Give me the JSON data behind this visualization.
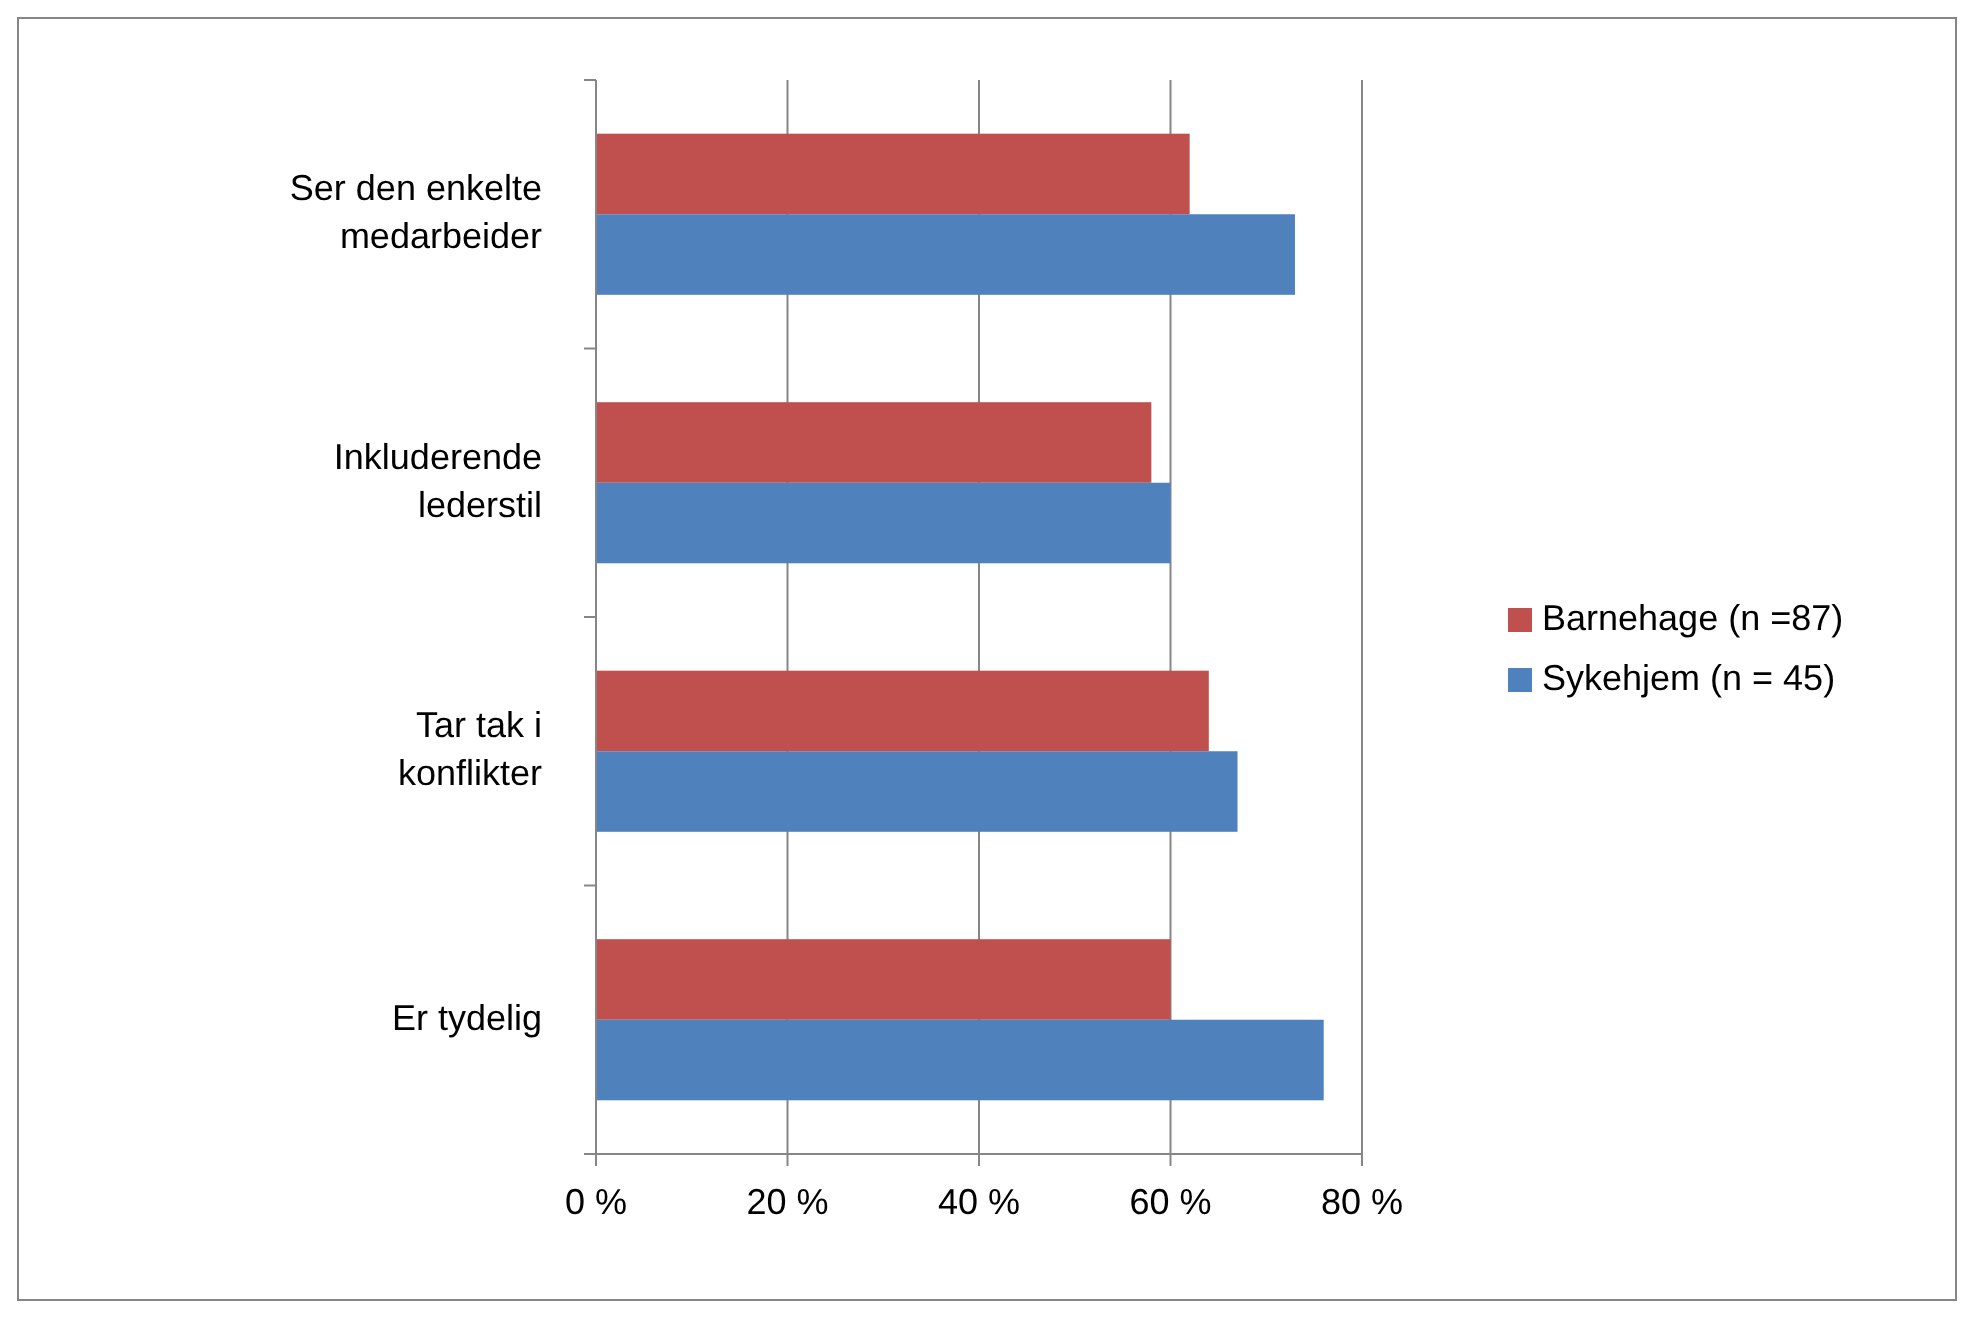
{
  "chart_data": {
    "type": "bar",
    "orientation": "horizontal",
    "categories": [
      "Ser den enkelte medarbeider",
      "Inkluderende lederstil",
      "Tar tak i konflikter",
      "Er tydelig"
    ],
    "series": [
      {
        "name": "Barnehage (n =87)",
        "color": "#c0504d",
        "values": [
          62,
          58,
          64,
          60
        ]
      },
      {
        "name": "Sykehjem (n = 45)",
        "color": "#4f81bd",
        "values": [
          73,
          60,
          67,
          76
        ]
      }
    ],
    "xlim": [
      0,
      80
    ],
    "xticks": [
      {
        "value": 0,
        "label": "0 %"
      },
      {
        "value": 20,
        "label": "20 %"
      },
      {
        "value": 40,
        "label": "40 %"
      },
      {
        "value": 60,
        "label": "60 %"
      },
      {
        "value": 80,
        "label": "80 %"
      }
    ],
    "grid": "x",
    "legend": "right"
  }
}
